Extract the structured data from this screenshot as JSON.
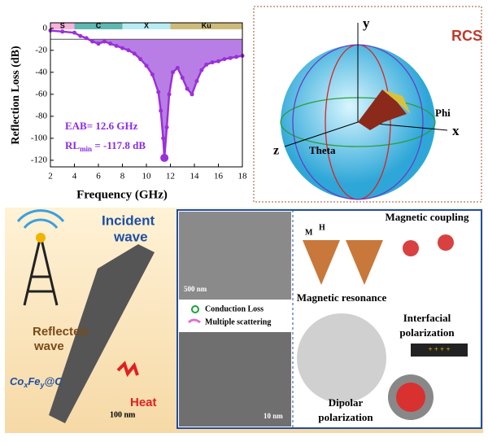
{
  "chart_data": {
    "type": "line",
    "y_label": "Reflection Loss (dB)",
    "x_label": "Frequency (GHz)",
    "x": [
      2,
      3,
      4,
      4.5,
      5,
      5.5,
      6,
      6.5,
      7,
      7.5,
      8,
      8.5,
      9,
      9.5,
      10,
      10.5,
      11,
      11.2,
      11.4,
      11.5,
      11.7,
      11.9,
      12.2,
      12.6,
      13,
      13.4,
      13.8,
      14.2,
      14.6,
      15,
      15.5,
      16,
      16.5,
      17,
      17.5,
      18
    ],
    "series": [
      {
        "name": "RL",
        "color": "#9b30d9",
        "values": [
          -2,
          -3,
          -4,
          -7,
          -9,
          -12,
          -14,
          -12,
          -14,
          -16,
          -18,
          -20,
          -23,
          -28,
          -34,
          -42,
          -58,
          -75,
          -100,
          -117.8,
          -90,
          -60,
          -40,
          -36,
          -45,
          -55,
          -60,
          -48,
          -38,
          -33,
          -31,
          -30,
          -28,
          -27,
          -26,
          -25
        ]
      }
    ],
    "threshold": -10,
    "fill_color": "#b87ee6",
    "bands": [
      {
        "name": "S",
        "range": [
          2,
          4
        ],
        "color": "#f7b2dc"
      },
      {
        "name": "C",
        "range": [
          4,
          8
        ],
        "color": "#5fb8b0"
      },
      {
        "name": "X",
        "range": [
          8,
          12
        ],
        "color": "#b7ecf3"
      },
      {
        "name": "Ku",
        "range": [
          12,
          18
        ],
        "color": "#cdbb7a"
      }
    ],
    "annotations": {
      "eab": "EAB= 12.6 GHz",
      "rl": "RL",
      "rl_sub": "min",
      "rl_rest": " = -117.8 dB"
    },
    "xlim": [
      2,
      18
    ],
    "ylim": [
      -126,
      5
    ],
    "xticks": [
      2,
      4,
      6,
      8,
      10,
      12,
      14,
      16,
      18
    ],
    "yticks": [
      0,
      -20,
      -40,
      -60,
      -80,
      -100,
      -120
    ]
  },
  "rcs": {
    "title": "RCS",
    "y": "y",
    "x": "x",
    "z": "z",
    "phi": "Phi",
    "theta": "Theta"
  },
  "bottom": {
    "incident": "Incident",
    "wave": "wave",
    "reflected": "Reflected",
    "wave2": "wave",
    "material": [
      "Co",
      "x",
      "Fe",
      "y",
      "@C"
    ],
    "heat": "Heat",
    "scale1": "100 nm",
    "scale2": "500 nm",
    "scale3": "10 nm",
    "legend1": "Conduction Loss",
    "legend2": "Multiple scattering",
    "m_coupling": "Magnetic coupling",
    "m": "M",
    "h": "H",
    "m_resonance": "Magnetic resonance",
    "interfacial": [
      "Interfacial",
      "polarization"
    ],
    "dipolar": [
      "Dipolar",
      "polarization"
    ],
    "plus": "+ + + +"
  }
}
